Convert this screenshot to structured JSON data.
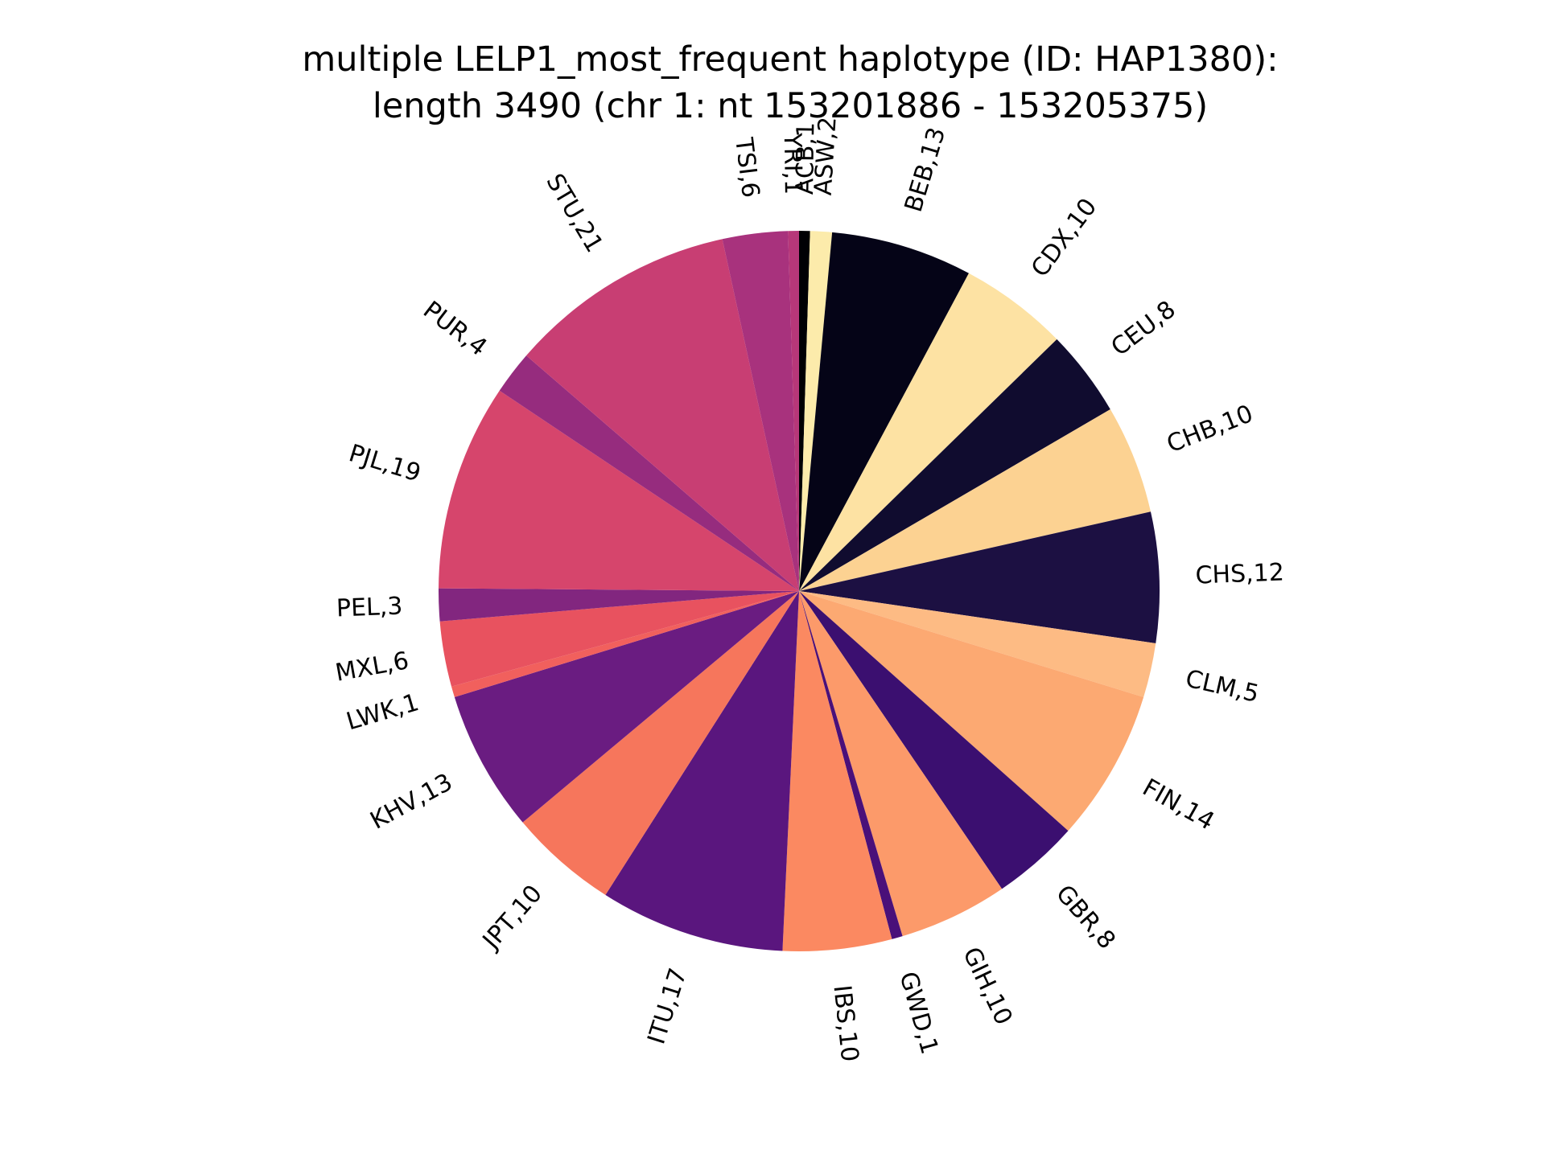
{
  "chart_data": {
    "type": "pie",
    "title_lines": [
      "multiple LELP1_most_frequent haplotype (ID: HAP1380):",
      "length 3490 (chr 1: nt 153201886 - 153205375)"
    ],
    "start_angle_deg": 90,
    "direction": "clockwise",
    "slices": [
      {
        "name": "ACB",
        "value": 1,
        "label": "ACB,1",
        "color": "#000004"
      },
      {
        "name": "ASW",
        "value": 2,
        "label": "ASW,2",
        "color": "#fcebab"
      },
      {
        "name": "BEB",
        "value": 13,
        "label": "BEB,13",
        "color": "#050417"
      },
      {
        "name": "CDX",
        "value": 10,
        "label": "CDX,10",
        "color": "#fde2a3"
      },
      {
        "name": "CEU",
        "value": 8,
        "label": "CEU,8",
        "color": "#100c2f"
      },
      {
        "name": "CHB",
        "value": 10,
        "label": "CHB,10",
        "color": "#fcd292"
      },
      {
        "name": "CHS",
        "value": 12,
        "label": "CHS,12",
        "color": "#1c1042"
      },
      {
        "name": "CLM",
        "value": 5,
        "label": "CLM,5",
        "color": "#fdbb84"
      },
      {
        "name": "FIN",
        "value": 14,
        "label": "FIN,14",
        "color": "#fca972"
      },
      {
        "name": "GBR",
        "value": 8,
        "label": "GBR,8",
        "color": "#3b0f70"
      },
      {
        "name": "GIH",
        "value": 10,
        "label": "GIH,10",
        "color": "#fc9a6a"
      },
      {
        "name": "GWD",
        "value": 1,
        "label": "GWD,1",
        "color": "#4a1079"
      },
      {
        "name": "IBS",
        "value": 10,
        "label": "IBS,10",
        "color": "#fb8961"
      },
      {
        "name": "ITU",
        "value": 17,
        "label": "ITU,17",
        "color": "#5a167e"
      },
      {
        "name": "JPT",
        "value": 10,
        "label": "JPT,10",
        "color": "#f6765c"
      },
      {
        "name": "KHV",
        "value": 13,
        "label": "KHV,13",
        "color": "#6a1c81"
      },
      {
        "name": "LWK",
        "value": 1,
        "label": "LWK,1",
        "color": "#f1605d"
      },
      {
        "name": "MXL",
        "value": 6,
        "label": "MXL,6",
        "color": "#e8525f"
      },
      {
        "name": "PEL",
        "value": 3,
        "label": "PEL,3",
        "color": "#82267f"
      },
      {
        "name": "PJL",
        "value": 19,
        "label": "PJL,19",
        "color": "#d6456c"
      },
      {
        "name": "PUR",
        "value": 4,
        "label": "PUR,4",
        "color": "#962c7e"
      },
      {
        "name": "STU",
        "value": 21,
        "label": "STU,21",
        "color": "#c83e73"
      },
      {
        "name": "TSI",
        "value": 6,
        "label": "TSI,6",
        "color": "#a8327d"
      },
      {
        "name": "YRI",
        "value": 1,
        "label": "YRI,1",
        "color": "#b73779"
      }
    ]
  }
}
